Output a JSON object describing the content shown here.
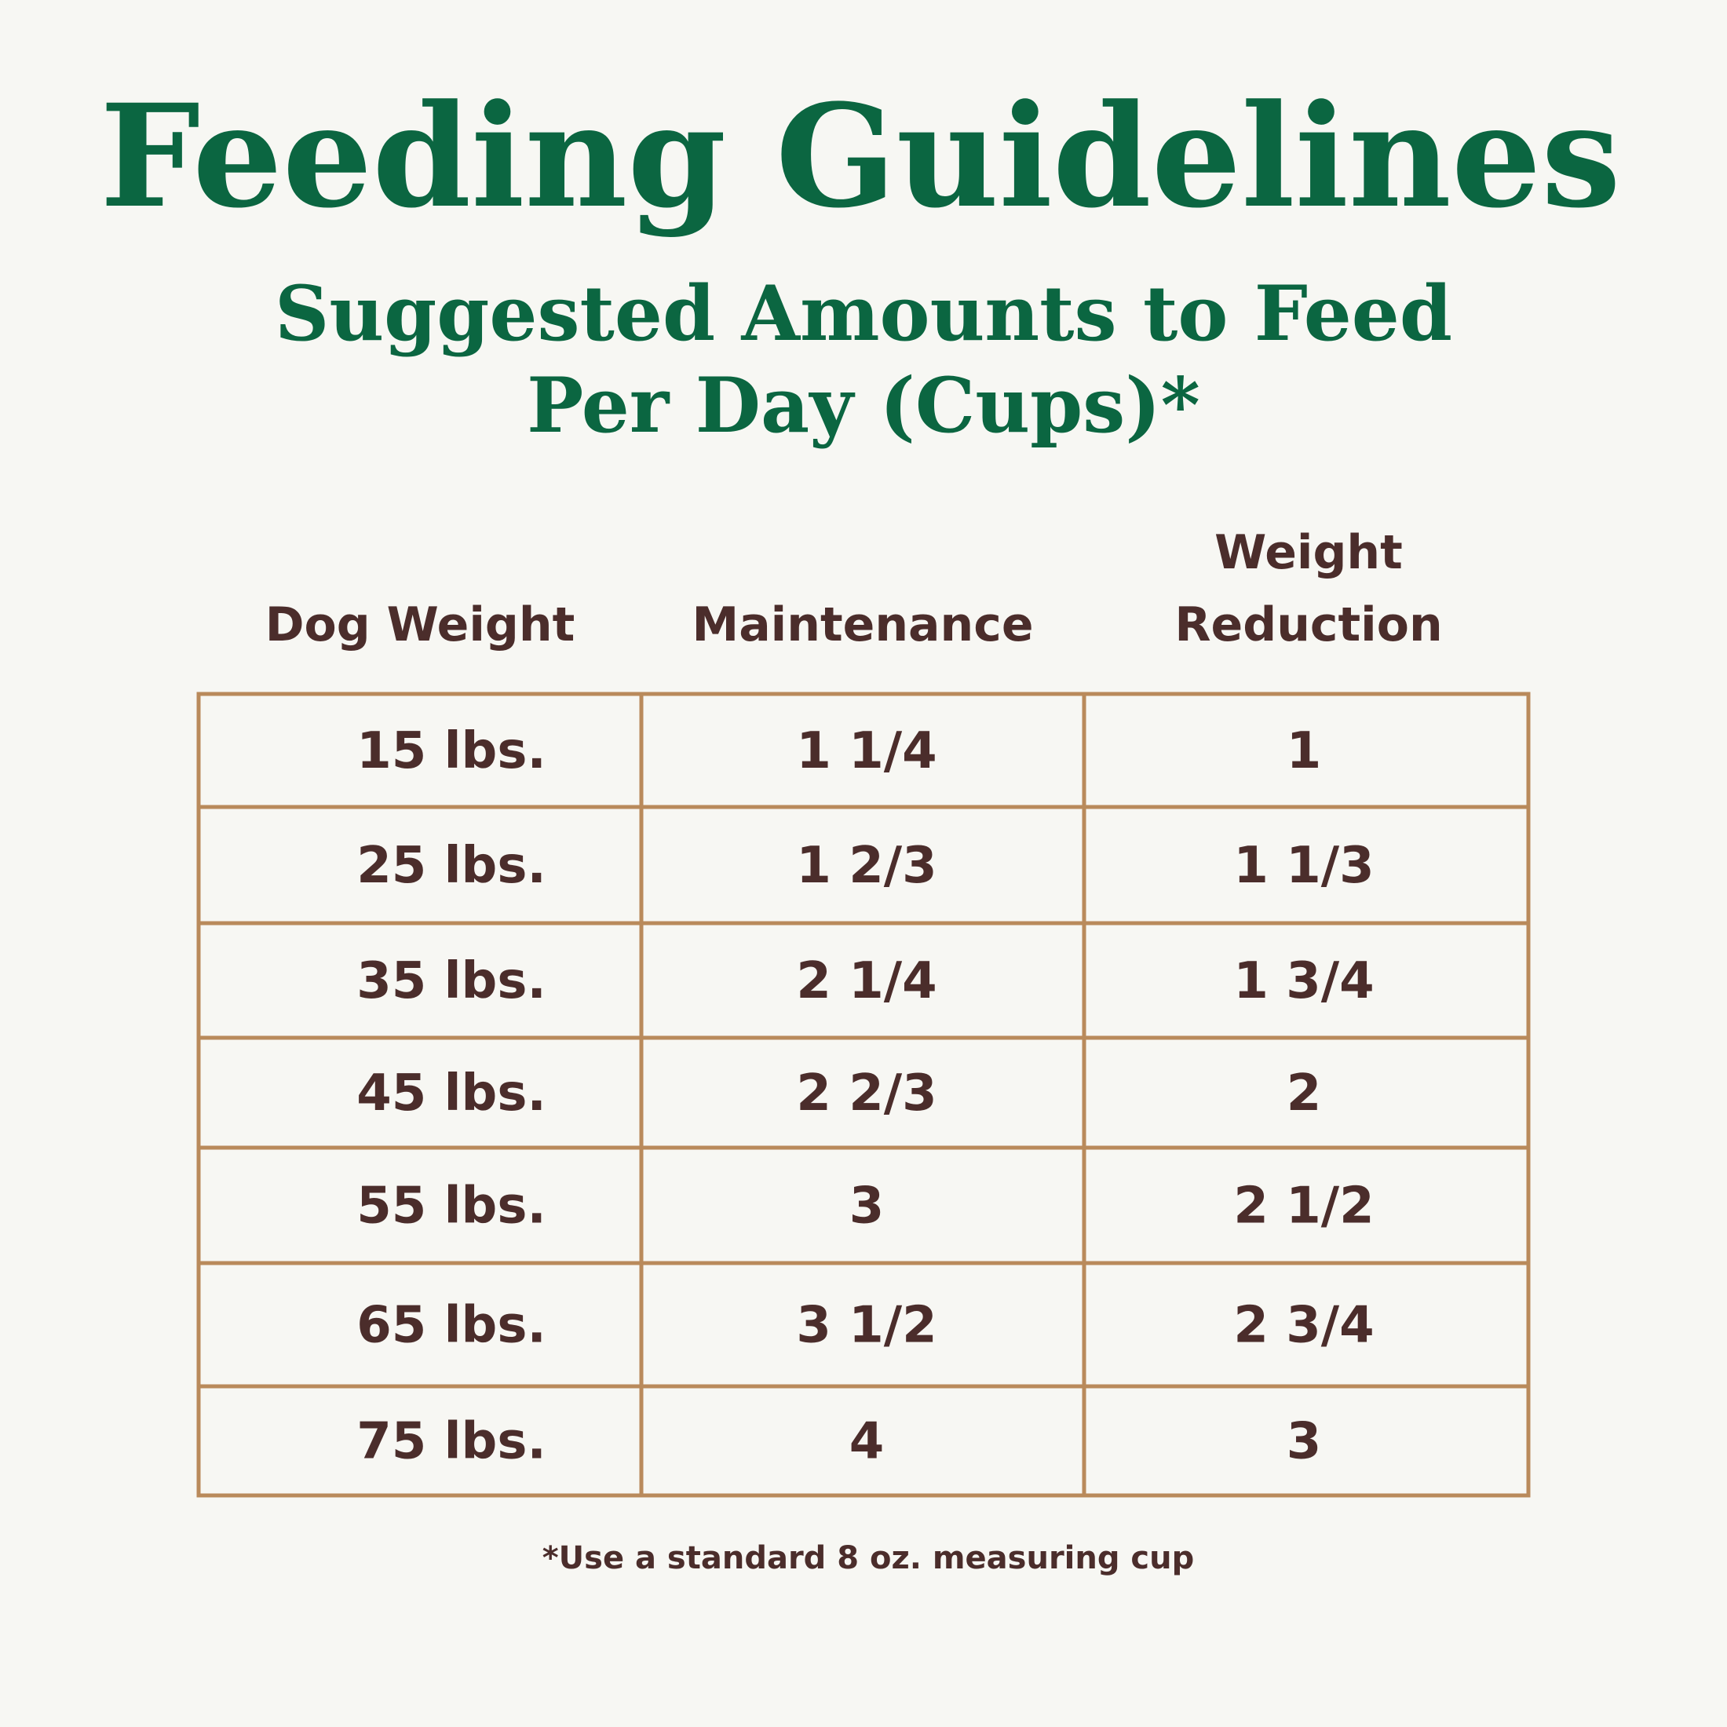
{
  "header": {
    "title": "Feeding Guidelines",
    "subtitle": [
      "Suggested Amounts to Feed",
      "Per Day (Cups)*"
    ]
  },
  "table": {
    "columns": [
      [
        "Dog Weight"
      ],
      [
        "Maintenance"
      ],
      [
        "Weight",
        "Reduction"
      ]
    ],
    "rows": [
      [
        "15 lbs.",
        "1 1/4",
        "1"
      ],
      [
        "25 lbs.",
        "1 2/3",
        "1 1/3"
      ],
      [
        "35 lbs.",
        "2 1/4",
        "1 3/4"
      ],
      [
        "45 lbs.",
        "2 2/3",
        "2"
      ],
      [
        "55 lbs.",
        "3",
        "2 1/2"
      ],
      [
        "65 lbs.",
        "3 1/2",
        "2 3/4"
      ],
      [
        "75 lbs.",
        "4",
        "3"
      ]
    ]
  },
  "footnote": "*Use a standard 8 oz. measuring cup"
}
